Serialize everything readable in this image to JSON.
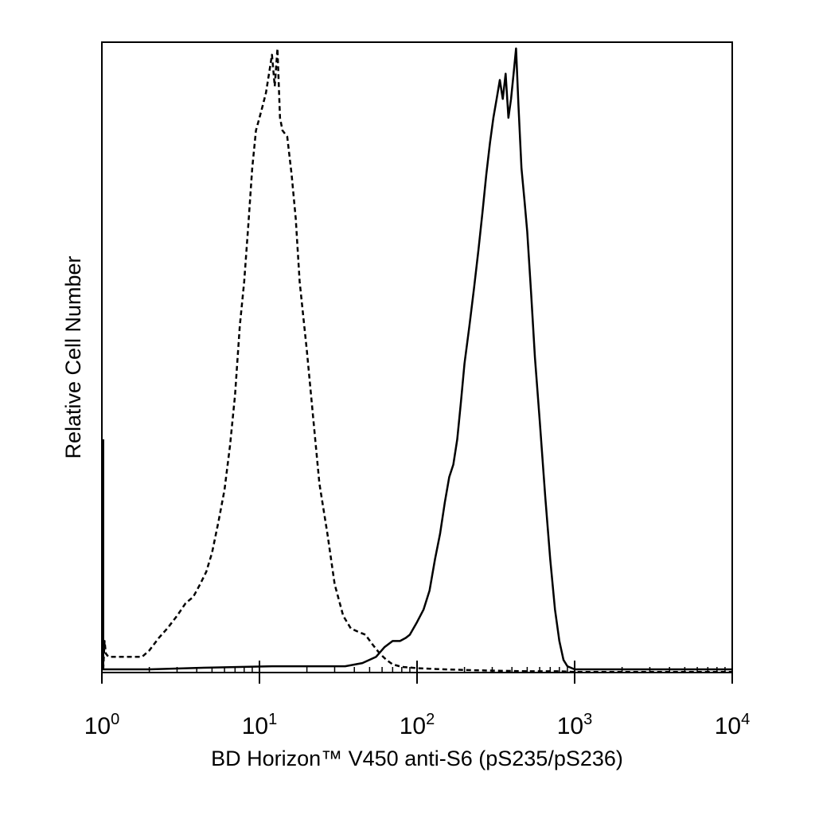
{
  "chart_data": {
    "type": "line",
    "title": "",
    "xlabel": "BD Horizon™ V450 anti-S6 (pS235/pS236)",
    "ylabel": "Relative Cell Number",
    "x_scale": "log",
    "xlim": [
      1,
      10000
    ],
    "ylim": [
      0,
      100
    ],
    "grid": false,
    "legend": "none",
    "x_ticks": [
      {
        "value": 1,
        "base": "10",
        "exp": "0"
      },
      {
        "value": 10,
        "base": "10",
        "exp": "1"
      },
      {
        "value": 100,
        "base": "10",
        "exp": "2"
      },
      {
        "value": 1000,
        "base": "10",
        "exp": "3"
      },
      {
        "value": 10000,
        "base": "10",
        "exp": "4"
      }
    ],
    "series": [
      {
        "style": "dashed",
        "color": "#000000",
        "x": [
          1.02,
          1.04,
          1.06,
          1.1,
          1.2,
          1.4,
          1.6,
          1.8,
          2.0,
          2.3,
          2.6,
          3.0,
          3.4,
          3.8,
          4.2,
          4.6,
          5.0,
          5.5,
          6.0,
          6.5,
          7.0,
          7.5,
          8.0,
          8.5,
          9.0,
          9.5,
          10.0,
          10.5,
          11.0,
          11.5,
          12.0,
          12.5,
          13.0,
          13.5,
          14.0,
          15.0,
          16.0,
          17.0,
          18.0,
          20.0,
          22.0,
          24.0,
          27.0,
          30.0,
          34.0,
          38.0,
          42.0,
          47.0,
          52.0,
          58.0,
          64.0,
          70.0,
          80.0,
          90.0,
          100.0,
          120.0,
          150.0,
          200.0,
          300.0,
          500.0,
          800.0,
          1000.0,
          2000.0,
          5000.0,
          10000.0
        ],
        "y": [
          0.5,
          5,
          3,
          2.5,
          2.5,
          2.5,
          2.5,
          2.5,
          3.5,
          5.5,
          7,
          9,
          11,
          12,
          14,
          16,
          19,
          24,
          29,
          36,
          44,
          55,
          62,
          71,
          80,
          86,
          88,
          90,
          92,
          95,
          98,
          93,
          99,
          88,
          86,
          85,
          79,
          72,
          62,
          51,
          40,
          30,
          22,
          14,
          9,
          7,
          6.5,
          6,
          4.5,
          3,
          2,
          1.3,
          0.9,
          0.8,
          0.7,
          0.6,
          0.5,
          0.4,
          0.3,
          0.2,
          0.2,
          0.1,
          0.1,
          0.1,
          0.1
        ]
      },
      {
        "style": "solid",
        "color": "#000000",
        "x": [
          1.0,
          2.0,
          5.0,
          8.0,
          12.0,
          18.0,
          25.0,
          35.0,
          45.0,
          55.0,
          62.0,
          70.0,
          78.0,
          85.0,
          90.0,
          100.0,
          110.0,
          120.0,
          130.0,
          140.0,
          150.0,
          160.0,
          170.0,
          180.0,
          190.0,
          200.0,
          215.0,
          230.0,
          245.0,
          260.0,
          275.0,
          290.0,
          305.0,
          320.0,
          335.0,
          350.0,
          365.0,
          380.0,
          395.0,
          410.0,
          425.0,
          440.0,
          460.0,
          480.0,
          500.0,
          530.0,
          560.0,
          600.0,
          650.0,
          700.0,
          750.0,
          800.0,
          850.0,
          900.0,
          1000.0,
          2000.0,
          5000.0,
          10000.0
        ],
        "y": [
          0.5,
          0.5,
          0.8,
          0.9,
          1.0,
          1.0,
          1.0,
          1.0,
          1.5,
          2.5,
          4.0,
          5.0,
          5.0,
          5.5,
          6.0,
          8.0,
          10.0,
          13.0,
          18.0,
          22.0,
          27.0,
          31.0,
          33.0,
          37.0,
          43.0,
          49.0,
          55.0,
          61.0,
          67.0,
          73.0,
          79.0,
          84.0,
          88.0,
          91.0,
          94.0,
          91.0,
          95.0,
          88.0,
          91.0,
          95.0,
          99.0,
          90.0,
          80.0,
          75.0,
          70.0,
          60.0,
          50.0,
          40.0,
          28.0,
          18.0,
          10.0,
          5.0,
          2.0,
          1.0,
          0.5,
          0.5,
          0.5,
          0.5
        ]
      },
      {
        "style": "solid",
        "color": "#000000",
        "x": [
          1.02,
          1.02
        ],
        "y": [
          0.5,
          37
        ]
      }
    ]
  }
}
